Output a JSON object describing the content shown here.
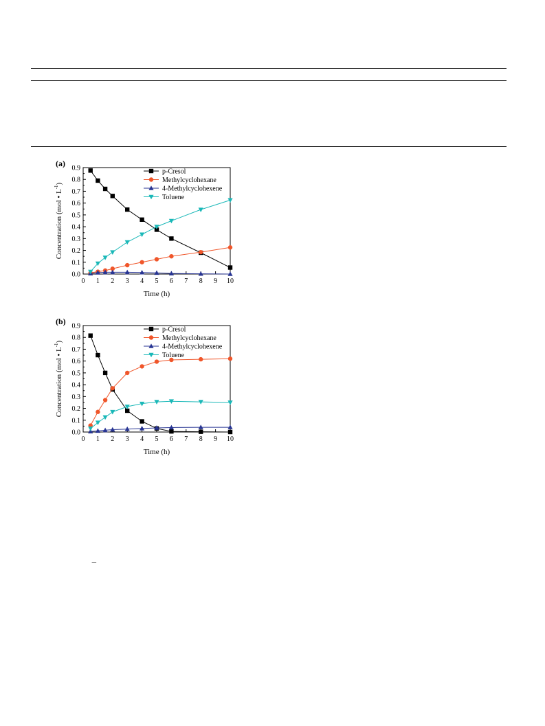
{
  "page": {
    "stray_mark": "−"
  },
  "chart_data": [
    {
      "type": "line",
      "panel_label": "(a)",
      "xlabel": "Time (h)",
      "ylabel": "Concentration (mol • L",
      "ylabel_sup": "-1",
      "ylabel_close": ")",
      "xlim": [
        0,
        10
      ],
      "ylim": [
        0.0,
        0.9
      ],
      "xticks": [
        "0",
        "1",
        "2",
        "3",
        "4",
        "5",
        "6",
        "7",
        "8",
        "9",
        "10"
      ],
      "yticks": [
        "0.0",
        "0.1",
        "0.2",
        "0.3",
        "0.4",
        "0.5",
        "0.6",
        "0.7",
        "0.8",
        "0.9"
      ],
      "legend_position": "top-right",
      "x": [
        0.5,
        1,
        1.5,
        2,
        3,
        4,
        5,
        6,
        8,
        10
      ],
      "series": [
        {
          "name": "p-Cresol",
          "marker": "square",
          "color": "#000000",
          "values": [
            0.875,
            0.79,
            0.72,
            0.66,
            0.545,
            0.46,
            0.375,
            0.3,
            0.18,
            0.055
          ]
        },
        {
          "name": "Methylcyclohexane",
          "marker": "circle",
          "color": "#f0562a",
          "values": [
            0.01,
            0.02,
            0.03,
            0.045,
            0.075,
            0.1,
            0.125,
            0.15,
            0.185,
            0.225
          ]
        },
        {
          "name": "4-Methylcyclohexene",
          "marker": "triangle-up",
          "color": "#283593",
          "values": [
            0.005,
            0.012,
            0.015,
            0.015,
            0.015,
            0.013,
            0.01,
            0.005,
            0.002,
            0.0
          ]
        },
        {
          "name": "Toluene",
          "marker": "triangle-down",
          "color": "#1ab8b8",
          "values": [
            0.02,
            0.09,
            0.14,
            0.185,
            0.27,
            0.335,
            0.4,
            0.45,
            0.545,
            0.625
          ]
        }
      ]
    },
    {
      "type": "line",
      "panel_label": "(b)",
      "xlabel": "Time (h)",
      "ylabel": "Concentration (mol • L",
      "ylabel_sup": "-1",
      "ylabel_close": ")",
      "xlim": [
        0,
        10
      ],
      "ylim": [
        0.0,
        0.9
      ],
      "xticks": [
        "0",
        "1",
        "2",
        "3",
        "4",
        "5",
        "6",
        "7",
        "8",
        "9",
        "10"
      ],
      "yticks": [
        "0.0",
        "0.1",
        "0.2",
        "0.3",
        "0.4",
        "0.5",
        "0.6",
        "0.7",
        "0.8",
        "0.9"
      ],
      "legend_position": "top-right",
      "x": [
        0.5,
        1,
        1.5,
        2,
        3,
        4,
        5,
        6,
        8,
        10
      ],
      "series": [
        {
          "name": "p-Cresol",
          "marker": "square",
          "color": "#000000",
          "values": [
            0.815,
            0.65,
            0.5,
            0.36,
            0.18,
            0.09,
            0.03,
            0.005,
            0.002,
            0.0
          ]
        },
        {
          "name": "Methylcyclohexane",
          "marker": "circle",
          "color": "#f0562a",
          "values": [
            0.055,
            0.17,
            0.27,
            0.37,
            0.5,
            0.555,
            0.595,
            0.61,
            0.615,
            0.62
          ]
        },
        {
          "name": "4-Methylcyclohexene",
          "marker": "triangle-up",
          "color": "#283593",
          "values": [
            0.005,
            0.01,
            0.015,
            0.02,
            0.025,
            0.03,
            0.035,
            0.038,
            0.04,
            0.04
          ]
        },
        {
          "name": "Toluene",
          "marker": "triangle-down",
          "color": "#1ab8b8",
          "values": [
            0.03,
            0.08,
            0.125,
            0.17,
            0.215,
            0.24,
            0.255,
            0.26,
            0.255,
            0.25
          ]
        }
      ]
    }
  ]
}
